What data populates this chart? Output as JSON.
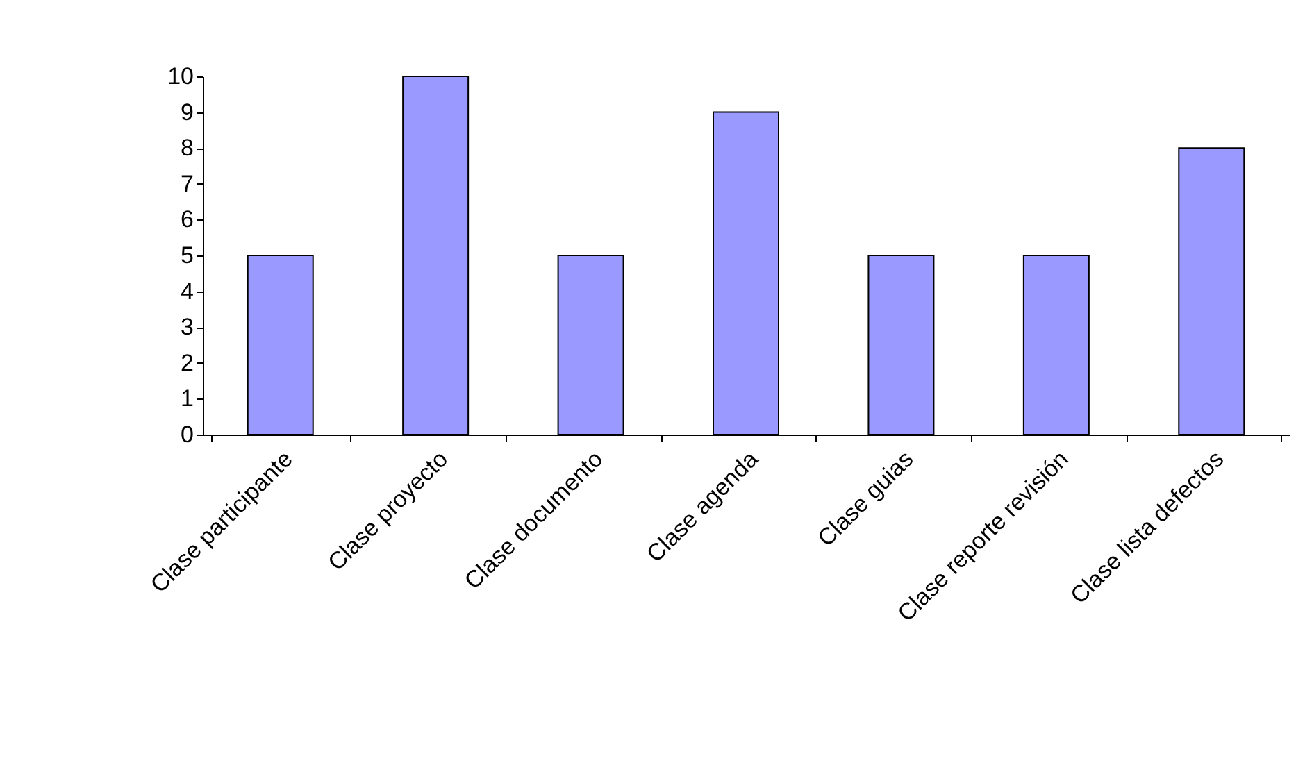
{
  "chart_data": {
    "type": "bar",
    "categories": [
      "Clase participante",
      "Clase proyecto",
      "Clase documento",
      "Clase agenda",
      "Clase guias",
      "Clase reporte revisión",
      "Clase lista defectos"
    ],
    "values": [
      5,
      10,
      5,
      9,
      5,
      5,
      8
    ],
    "color": "#9999ff",
    "ylim": [
      0,
      10
    ],
    "yticks": [
      0,
      1,
      2,
      3,
      4,
      5,
      6,
      7,
      8,
      9,
      10
    ],
    "grid": false
  }
}
